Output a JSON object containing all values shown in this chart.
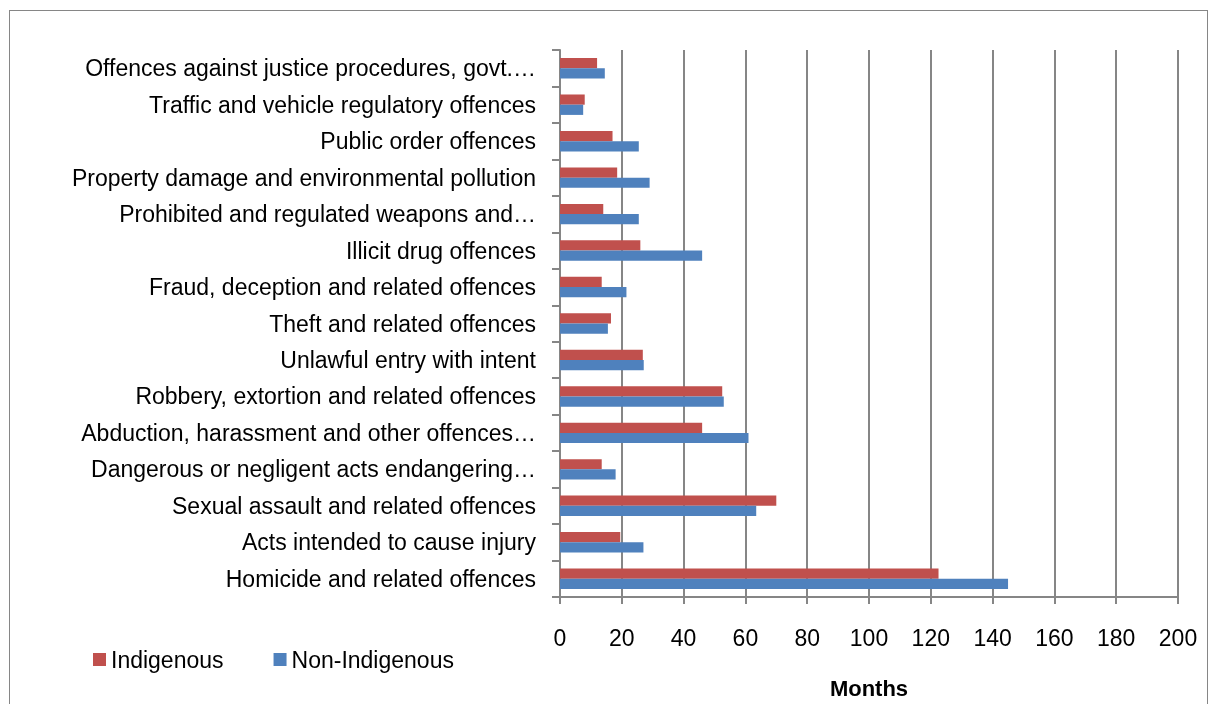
{
  "chart_data": {
    "type": "bar",
    "orientation": "horizontal",
    "categories": [
      "Offences against justice procedures, govt.…",
      "Traffic and vehicle regulatory offences",
      "Public order offences",
      "Property damage and environmental pollution",
      "Prohibited and regulated weapons and…",
      "Illicit drug offences",
      "Fraud, deception and related offences",
      "Theft and related offences",
      "Unlawful entry with intent",
      "Robbery, extortion and related offences",
      "Abduction, harassment and other offences…",
      "Dangerous or negligent acts endangering…",
      "Sexual assault and related offences",
      "Acts intended to cause injury",
      "Homicide and related offences"
    ],
    "series": [
      {
        "name": "Indigenous",
        "color": "#c0504d",
        "values": [
          12,
          8,
          17,
          18.5,
          14,
          26,
          13.5,
          16.5,
          26.8,
          52.5,
          46,
          13.5,
          70,
          19.5,
          122.5
        ]
      },
      {
        "name": "Non-Indigenous",
        "color": "#4f81bd",
        "values": [
          14.5,
          7.5,
          25.5,
          29,
          25.5,
          46,
          21.5,
          15.5,
          27.1,
          53,
          61,
          18,
          63.5,
          27,
          145
        ]
      }
    ],
    "xlabel": "Months",
    "xlim": [
      0,
      200
    ],
    "xticks": [
      0,
      20,
      40,
      60,
      80,
      100,
      120,
      140,
      160,
      180,
      200
    ],
    "grid": "x",
    "legend": "bottom left"
  }
}
